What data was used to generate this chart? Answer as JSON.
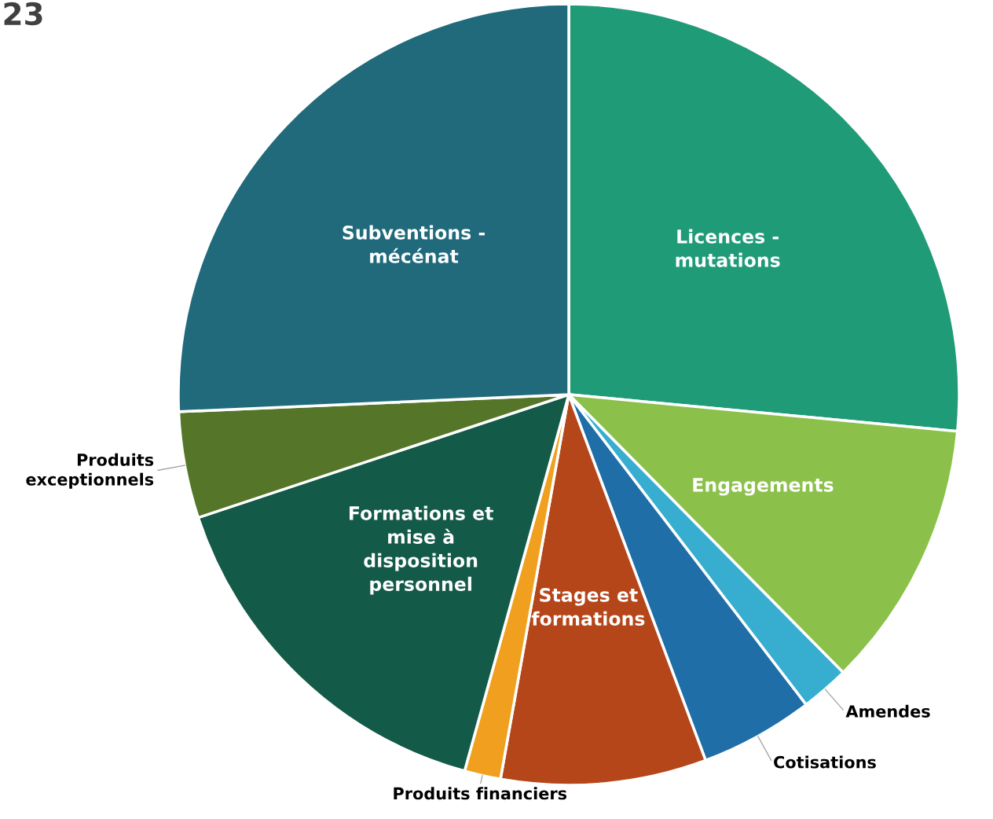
{
  "chart_data": {
    "type": "pie",
    "title": "23",
    "categories": [
      "Licences -\nmutations",
      "Engagements",
      "Amendes",
      "Cotisations",
      "Stages et\nformations",
      "Produits financiers",
      "Formations et\nmise à\ndisposition\npersonnel",
      "Produits\nexceptionnels",
      "Subventions -\nmécénat"
    ],
    "values": [
      26.5,
      11.1,
      2.0,
      4.7,
      8.5,
      1.5,
      15.6,
      4.4,
      25.7
    ],
    "colors": [
      "#209b78",
      "#8bc14a",
      "#37aed0",
      "#1f6ea8",
      "#b5461a",
      "#f0a01e",
      "#135a48",
      "#557628",
      "#206a7c"
    ]
  }
}
